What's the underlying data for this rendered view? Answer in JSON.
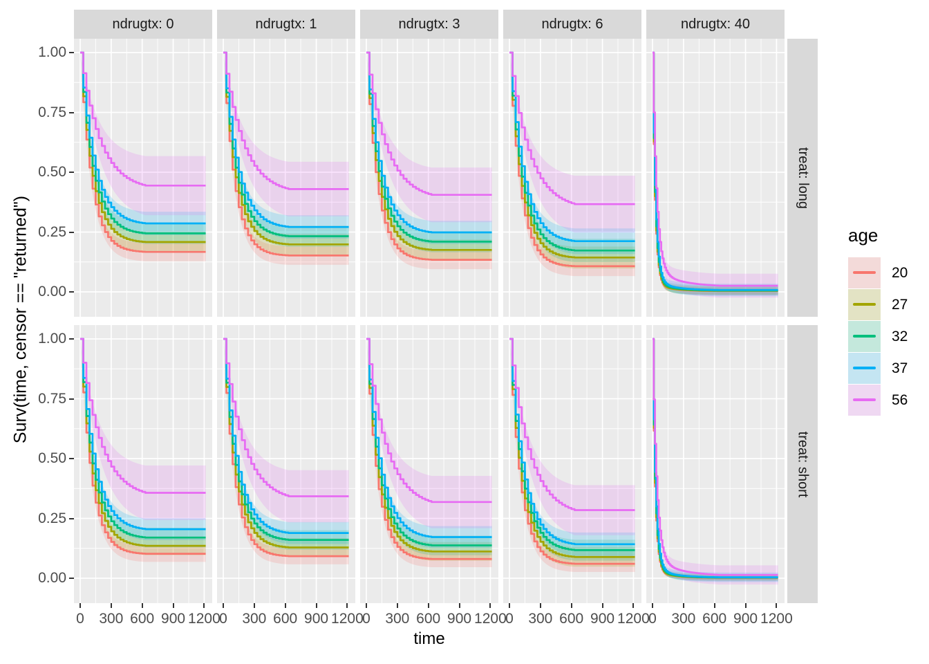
{
  "figure": {
    "y_axis_title": "Surv(time, censor == \"returned\")",
    "x_axis_title": "time",
    "col_strips": [
      "ndrugtx: 0",
      "ndrugtx: 1",
      "ndrugtx: 3",
      "ndrugtx: 6",
      "ndrugtx: 40"
    ],
    "row_strips": [
      "treat: long",
      "treat: short"
    ],
    "y_tick_labels": [
      "1.00",
      "0.75",
      "0.50",
      "0.25",
      "0.00"
    ],
    "x_tick_labels": [
      "0",
      "300",
      "600",
      "900",
      "1200"
    ],
    "legend": {
      "title": "age",
      "entries": [
        {
          "label": "20",
          "color": "#F8766D"
        },
        {
          "label": "27",
          "color": "#A3A500"
        },
        {
          "label": "32",
          "color": "#00BF7D"
        },
        {
          "label": "37",
          "color": "#00B0F6"
        },
        {
          "label": "56",
          "color": "#E76BF3"
        }
      ]
    },
    "theme": {
      "panel_bg": "#EBEBEB",
      "strip_bg": "#D9D9D9",
      "grid_color": "#FFFFFF",
      "tick_label_color": "#4D4D4D",
      "ribbon_alpha": 0.19,
      "line_width": 2.7
    }
  },
  "chart_data": {
    "type": "line",
    "description": "Faceted Kaplan-Meier survival curves with confidence ribbons. Columns facet ndrugtx (0,1,3,6,40), rows facet treat (long, short), color maps age. Curves approximated by S(t) = plateau + (1-plateau)*((1-w2)*exp(-t/tau) + w2*exp(-t/tau2)); ribbon half-width = hw*(1-exp(-t/tau_r)); curves flatten at t_flat and extend to t_end.",
    "xlabel": "time",
    "ylabel": "Surv(time, censor == \"returned\")",
    "x_ticks": [
      0,
      300,
      600,
      900,
      1200
    ],
    "y_ticks": [
      1.0,
      0.75,
      0.5,
      0.25,
      0.0
    ],
    "x_minor": [
      150,
      450,
      750,
      1050
    ],
    "y_minor": [
      0.125,
      0.375,
      0.625,
      0.875
    ],
    "ylim": [
      -0.105,
      1.06
    ],
    "xlim": [
      -60,
      1290
    ],
    "t_end": 1215,
    "ages": [
      "20",
      "27",
      "32",
      "37",
      "56"
    ],
    "colors": {
      "20": "#F8766D",
      "27": "#A3A500",
      "32": "#00BF7D",
      "37": "#00B0F6",
      "56": "#E76BF3"
    },
    "panels": [
      {
        "treat": "long",
        "ndrugtx": "0",
        "step": 30,
        "t_flat": 650,
        "series": [
          {
            "age": "20",
            "plateau": 0.165,
            "tau": 105,
            "hw": 0.04,
            "tau_r": 170
          },
          {
            "age": "27",
            "plateau": 0.205,
            "tau": 115,
            "hw": 0.045,
            "tau_r": 170
          },
          {
            "age": "32",
            "plateau": 0.24,
            "tau": 123,
            "hw": 0.045,
            "tau_r": 170
          },
          {
            "age": "37",
            "plateau": 0.28,
            "tau": 132,
            "hw": 0.05,
            "tau_r": 170
          },
          {
            "age": "56",
            "plateau": 0.425,
            "tau": 185,
            "hw": 0.13,
            "tau_r": 210
          }
        ]
      },
      {
        "treat": "long",
        "ndrugtx": "1",
        "step": 30,
        "t_flat": 650,
        "series": [
          {
            "age": "20",
            "plateau": 0.15,
            "tau": 105,
            "hw": 0.04,
            "tau_r": 170
          },
          {
            "age": "27",
            "plateau": 0.195,
            "tau": 115,
            "hw": 0.045,
            "tau_r": 170
          },
          {
            "age": "32",
            "plateau": 0.228,
            "tau": 123,
            "hw": 0.045,
            "tau_r": 170
          },
          {
            "age": "37",
            "plateau": 0.265,
            "tau": 132,
            "hw": 0.05,
            "tau_r": 170
          },
          {
            "age": "56",
            "plateau": 0.41,
            "tau": 185,
            "hw": 0.12,
            "tau_r": 210
          }
        ]
      },
      {
        "treat": "long",
        "ndrugtx": "3",
        "step": 30,
        "t_flat": 650,
        "series": [
          {
            "age": "20",
            "plateau": 0.132,
            "tau": 105,
            "hw": 0.04,
            "tau_r": 170
          },
          {
            "age": "27",
            "plateau": 0.172,
            "tau": 115,
            "hw": 0.045,
            "tau_r": 170
          },
          {
            "age": "32",
            "plateau": 0.205,
            "tau": 123,
            "hw": 0.045,
            "tau_r": 170
          },
          {
            "age": "37",
            "plateau": 0.242,
            "tau": 132,
            "hw": 0.05,
            "tau_r": 170
          },
          {
            "age": "56",
            "plateau": 0.385,
            "tau": 185,
            "hw": 0.12,
            "tau_r": 210
          }
        ]
      },
      {
        "treat": "long",
        "ndrugtx": "6",
        "step": 30,
        "t_flat": 650,
        "series": [
          {
            "age": "20",
            "plateau": 0.105,
            "tau": 105,
            "hw": 0.042,
            "tau_r": 170
          },
          {
            "age": "27",
            "plateau": 0.14,
            "tau": 115,
            "hw": 0.047,
            "tau_r": 170
          },
          {
            "age": "32",
            "plateau": 0.168,
            "tau": 123,
            "hw": 0.05,
            "tau_r": 170
          },
          {
            "age": "37",
            "plateau": 0.205,
            "tau": 132,
            "hw": 0.055,
            "tau_r": 170
          },
          {
            "age": "56",
            "plateau": 0.345,
            "tau": 185,
            "hw": 0.125,
            "tau_r": 210
          }
        ]
      },
      {
        "treat": "long",
        "ndrugtx": "40",
        "step": 12,
        "t_flat": 650,
        "series": [
          {
            "age": "20",
            "plateau": 0.003,
            "tau": 24,
            "w2": 0.03,
            "tau2": 160,
            "hw": 0.015,
            "tau_r": 70
          },
          {
            "age": "27",
            "plateau": 0.004,
            "tau": 25,
            "w2": 0.03,
            "tau2": 160,
            "hw": 0.017,
            "tau_r": 70
          },
          {
            "age": "32",
            "plateau": 0.005,
            "tau": 26,
            "w2": 0.035,
            "tau2": 170,
            "hw": 0.02,
            "tau_r": 70
          },
          {
            "age": "37",
            "plateau": 0.007,
            "tau": 28,
            "w2": 0.04,
            "tau2": 180,
            "hw": 0.026,
            "tau_r": 70
          },
          {
            "age": "56",
            "plateau": 0.02,
            "tau": 38,
            "w2": 0.07,
            "tau2": 260,
            "hw": 0.05,
            "tau_r": 90
          }
        ]
      },
      {
        "treat": "short",
        "ndrugtx": "0",
        "step": 30,
        "t_flat": 650,
        "series": [
          {
            "age": "20",
            "plateau": 0.1,
            "tau": 105,
            "hw": 0.035,
            "tau_r": 170
          },
          {
            "age": "27",
            "plateau": 0.132,
            "tau": 115,
            "hw": 0.04,
            "tau_r": 170
          },
          {
            "age": "32",
            "plateau": 0.165,
            "tau": 123,
            "hw": 0.042,
            "tau_r": 170
          },
          {
            "age": "37",
            "plateau": 0.198,
            "tau": 132,
            "hw": 0.047,
            "tau_r": 170
          },
          {
            "age": "56",
            "plateau": 0.335,
            "tau": 185,
            "hw": 0.12,
            "tau_r": 210
          }
        ]
      },
      {
        "treat": "short",
        "ndrugtx": "1",
        "step": 30,
        "t_flat": 650,
        "series": [
          {
            "age": "20",
            "plateau": 0.09,
            "tau": 105,
            "hw": 0.035,
            "tau_r": 170
          },
          {
            "age": "27",
            "plateau": 0.125,
            "tau": 115,
            "hw": 0.04,
            "tau_r": 170
          },
          {
            "age": "32",
            "plateau": 0.155,
            "tau": 123,
            "hw": 0.042,
            "tau_r": 170
          },
          {
            "age": "37",
            "plateau": 0.182,
            "tau": 132,
            "hw": 0.047,
            "tau_r": 170
          },
          {
            "age": "56",
            "plateau": 0.32,
            "tau": 185,
            "hw": 0.115,
            "tau_r": 210
          }
        ]
      },
      {
        "treat": "short",
        "ndrugtx": "3",
        "step": 30,
        "t_flat": 650,
        "series": [
          {
            "age": "20",
            "plateau": 0.078,
            "tau": 105,
            "hw": 0.035,
            "tau_r": 170
          },
          {
            "age": "27",
            "plateau": 0.108,
            "tau": 115,
            "hw": 0.04,
            "tau_r": 170
          },
          {
            "age": "32",
            "plateau": 0.132,
            "tau": 123,
            "hw": 0.042,
            "tau_r": 170
          },
          {
            "age": "37",
            "plateau": 0.165,
            "tau": 132,
            "hw": 0.047,
            "tau_r": 170
          },
          {
            "age": "56",
            "plateau": 0.295,
            "tau": 185,
            "hw": 0.115,
            "tau_r": 210
          }
        ]
      },
      {
        "treat": "short",
        "ndrugtx": "6",
        "step": 30,
        "t_flat": 650,
        "series": [
          {
            "age": "20",
            "plateau": 0.058,
            "tau": 105,
            "hw": 0.035,
            "tau_r": 170
          },
          {
            "age": "27",
            "plateau": 0.085,
            "tau": 115,
            "hw": 0.042,
            "tau_r": 170
          },
          {
            "age": "32",
            "plateau": 0.112,
            "tau": 123,
            "hw": 0.045,
            "tau_r": 170
          },
          {
            "age": "37",
            "plateau": 0.135,
            "tau": 132,
            "hw": 0.05,
            "tau_r": 170
          },
          {
            "age": "56",
            "plateau": 0.26,
            "tau": 185,
            "hw": 0.11,
            "tau_r": 210
          }
        ]
      },
      {
        "treat": "short",
        "ndrugtx": "40",
        "step": 12,
        "t_flat": 650,
        "series": [
          {
            "age": "20",
            "plateau": 0.001,
            "tau": 24,
            "w2": 0.03,
            "tau2": 160,
            "hw": 0.01,
            "tau_r": 70
          },
          {
            "age": "27",
            "plateau": 0.002,
            "tau": 25,
            "w2": 0.03,
            "tau2": 160,
            "hw": 0.012,
            "tau_r": 70
          },
          {
            "age": "32",
            "plateau": 0.002,
            "tau": 26,
            "w2": 0.035,
            "tau2": 170,
            "hw": 0.015,
            "tau_r": 70
          },
          {
            "age": "37",
            "plateau": 0.003,
            "tau": 28,
            "w2": 0.04,
            "tau2": 180,
            "hw": 0.02,
            "tau_r": 70
          },
          {
            "age": "56",
            "plateau": 0.008,
            "tau": 38,
            "w2": 0.07,
            "tau2": 260,
            "hw": 0.04,
            "tau_r": 90
          }
        ]
      }
    ]
  }
}
